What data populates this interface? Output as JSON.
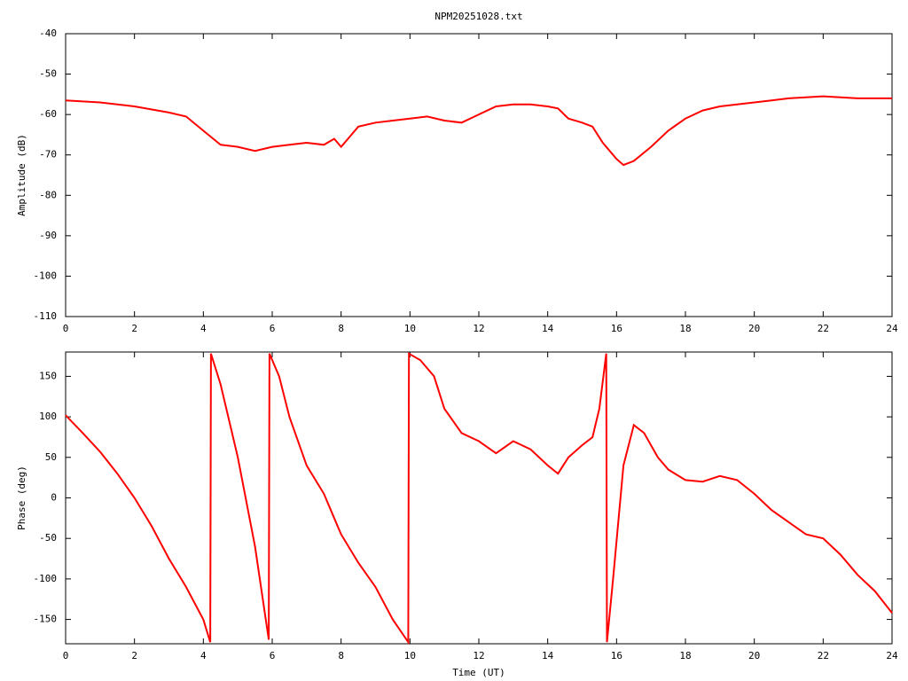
{
  "chart_data": [
    {
      "type": "line",
      "title": "NPM20251028.txt",
      "y_label": "Amplitude (dB)",
      "xlim": [
        0,
        24
      ],
      "xticks": [
        0,
        2,
        4,
        6,
        8,
        10,
        12,
        14,
        16,
        18,
        20,
        22,
        24
      ],
      "ylim": [
        -110,
        -40
      ],
      "yticks": [
        -110,
        -100,
        -90,
        -80,
        -70,
        -60,
        -50,
        -40
      ],
      "grid": false,
      "series": [
        {
          "color": "#ff0000",
          "x": [
            0,
            1,
            2,
            3,
            3.5,
            4,
            4.5,
            5,
            5.5,
            6,
            6.5,
            7,
            7.5,
            7.8,
            8,
            8.5,
            9,
            9.5,
            10,
            10.5,
            11,
            11.5,
            12,
            12.5,
            13,
            13.5,
            14,
            14.3,
            14.6,
            15,
            15.3,
            15.6,
            16,
            16.2,
            16.5,
            17,
            17.5,
            18,
            18.5,
            19,
            20,
            20.5,
            21,
            22,
            23,
            24
          ],
          "values": [
            -56.5,
            -57,
            -58,
            -59.5,
            -60.5,
            -64,
            -67.5,
            -68,
            -69,
            -68,
            -67.5,
            -67,
            -67.5,
            -66,
            -68,
            -63,
            -62,
            -61.5,
            -61,
            -60.5,
            -61.5,
            -62,
            -60,
            -58,
            -57.5,
            -57.5,
            -58,
            -58.5,
            -61,
            -62,
            -63,
            -67,
            -71,
            -72.5,
            -71.5,
            -68,
            -64,
            -61,
            -59,
            -58,
            -57,
            -56.5,
            -56,
            -55.5,
            -56,
            -56
          ]
        }
      ]
    },
    {
      "type": "line",
      "x_label": "Time (UT)",
      "y_label": "Phase (deg)",
      "xlim": [
        0,
        24
      ],
      "xticks": [
        0,
        2,
        4,
        6,
        8,
        10,
        12,
        14,
        16,
        18,
        20,
        22,
        24
      ],
      "ylim": [
        -180,
        180
      ],
      "yticks": [
        -150,
        -100,
        -50,
        0,
        50,
        100,
        150
      ],
      "grid": false,
      "series": [
        {
          "color": "#ff0000",
          "x": [
            0,
            0.5,
            1,
            1.5,
            2,
            2.5,
            3,
            3.5,
            4,
            4.2,
            4.22,
            4.5,
            5,
            5.5,
            5.9,
            5.92,
            6.2,
            6.5,
            7,
            7.5,
            7.8,
            8,
            8.5,
            9,
            9.5,
            9.95,
            9.97,
            10.3,
            10.7,
            11,
            11.5,
            12,
            12.5,
            13,
            13.5,
            14,
            14.3,
            14.6,
            15,
            15.3,
            15.5,
            15.7,
            15.72,
            15.9,
            16.2,
            16.5,
            16.8,
            17.2,
            17.5,
            18,
            18.5,
            19,
            19.5,
            20,
            20.5,
            21,
            21.5,
            22,
            22.5,
            23,
            23.5,
            24
          ],
          "values": [
            102,
            80,
            57,
            30,
            0,
            -35,
            -75,
            -110,
            -150,
            -178,
            178,
            140,
            50,
            -60,
            -175,
            178,
            150,
            100,
            40,
            5,
            -25,
            -45,
            -80,
            -110,
            -150,
            -178,
            178,
            170,
            150,
            110,
            80,
            70,
            55,
            70,
            60,
            40,
            30,
            50,
            65,
            75,
            110,
            178,
            -178,
            -100,
            40,
            90,
            80,
            50,
            35,
            22,
            20,
            27,
            22,
            5,
            -15,
            -30,
            -45,
            -50,
            -70,
            -95,
            -115,
            -142
          ]
        }
      ]
    }
  ]
}
